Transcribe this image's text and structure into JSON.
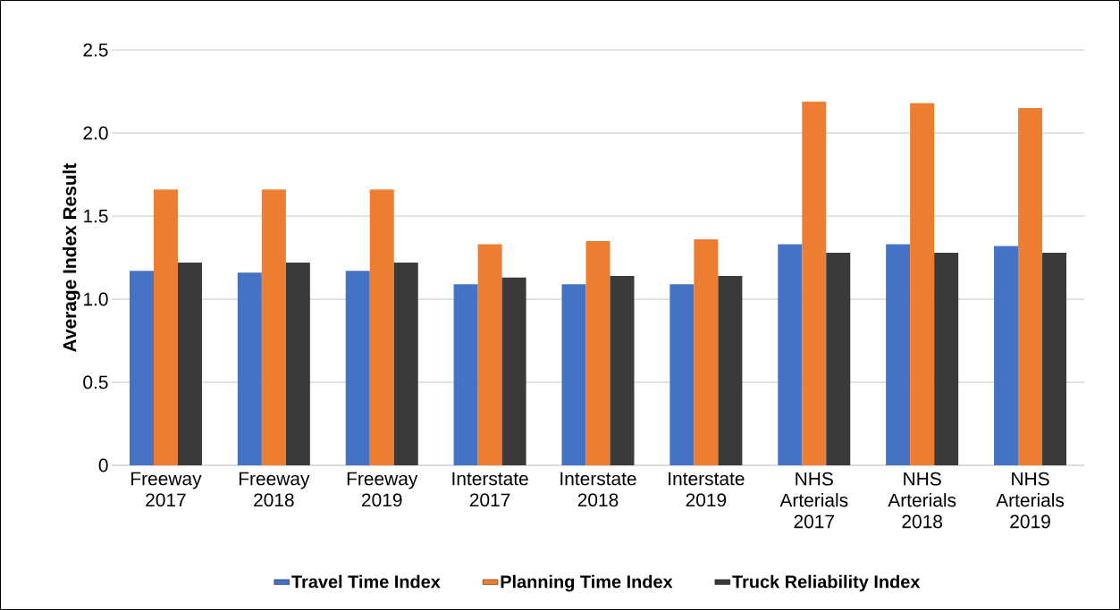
{
  "chart_data": {
    "type": "bar",
    "ylabel": "Average Index Result",
    "categories": [
      "Freeway 2017",
      "Freeway 2018",
      "Freeway 2019",
      "Interstate 2017",
      "Interstate 2018",
      "Interstate 2019",
      "NHS Arterials 2017",
      "NHS Arterials 2018",
      "NHS Arterials 2019"
    ],
    "series": [
      {
        "name": "Travel Time Index",
        "color": "#4472c4",
        "values": [
          1.17,
          1.16,
          1.17,
          1.09,
          1.09,
          1.09,
          1.33,
          1.33,
          1.32
        ]
      },
      {
        "name": "Planning Time Index",
        "color": "#ed7d31",
        "values": [
          1.66,
          1.66,
          1.66,
          1.33,
          1.35,
          1.36,
          2.19,
          2.18,
          2.15
        ]
      },
      {
        "name": "Truck Reliability Index",
        "color": "#3a3a3a",
        "values": [
          1.22,
          1.22,
          1.22,
          1.13,
          1.14,
          1.14,
          1.28,
          1.28,
          1.28
        ]
      }
    ],
    "ylim": [
      0,
      2.5
    ],
    "yticks": [
      0,
      0.5,
      {
        "value": 1.0,
        "label": "1.0"
      },
      1.5,
      {
        "value": 2.0,
        "label": "2.0"
      },
      2.5
    ],
    "grid": "y",
    "legend": "bottom"
  }
}
